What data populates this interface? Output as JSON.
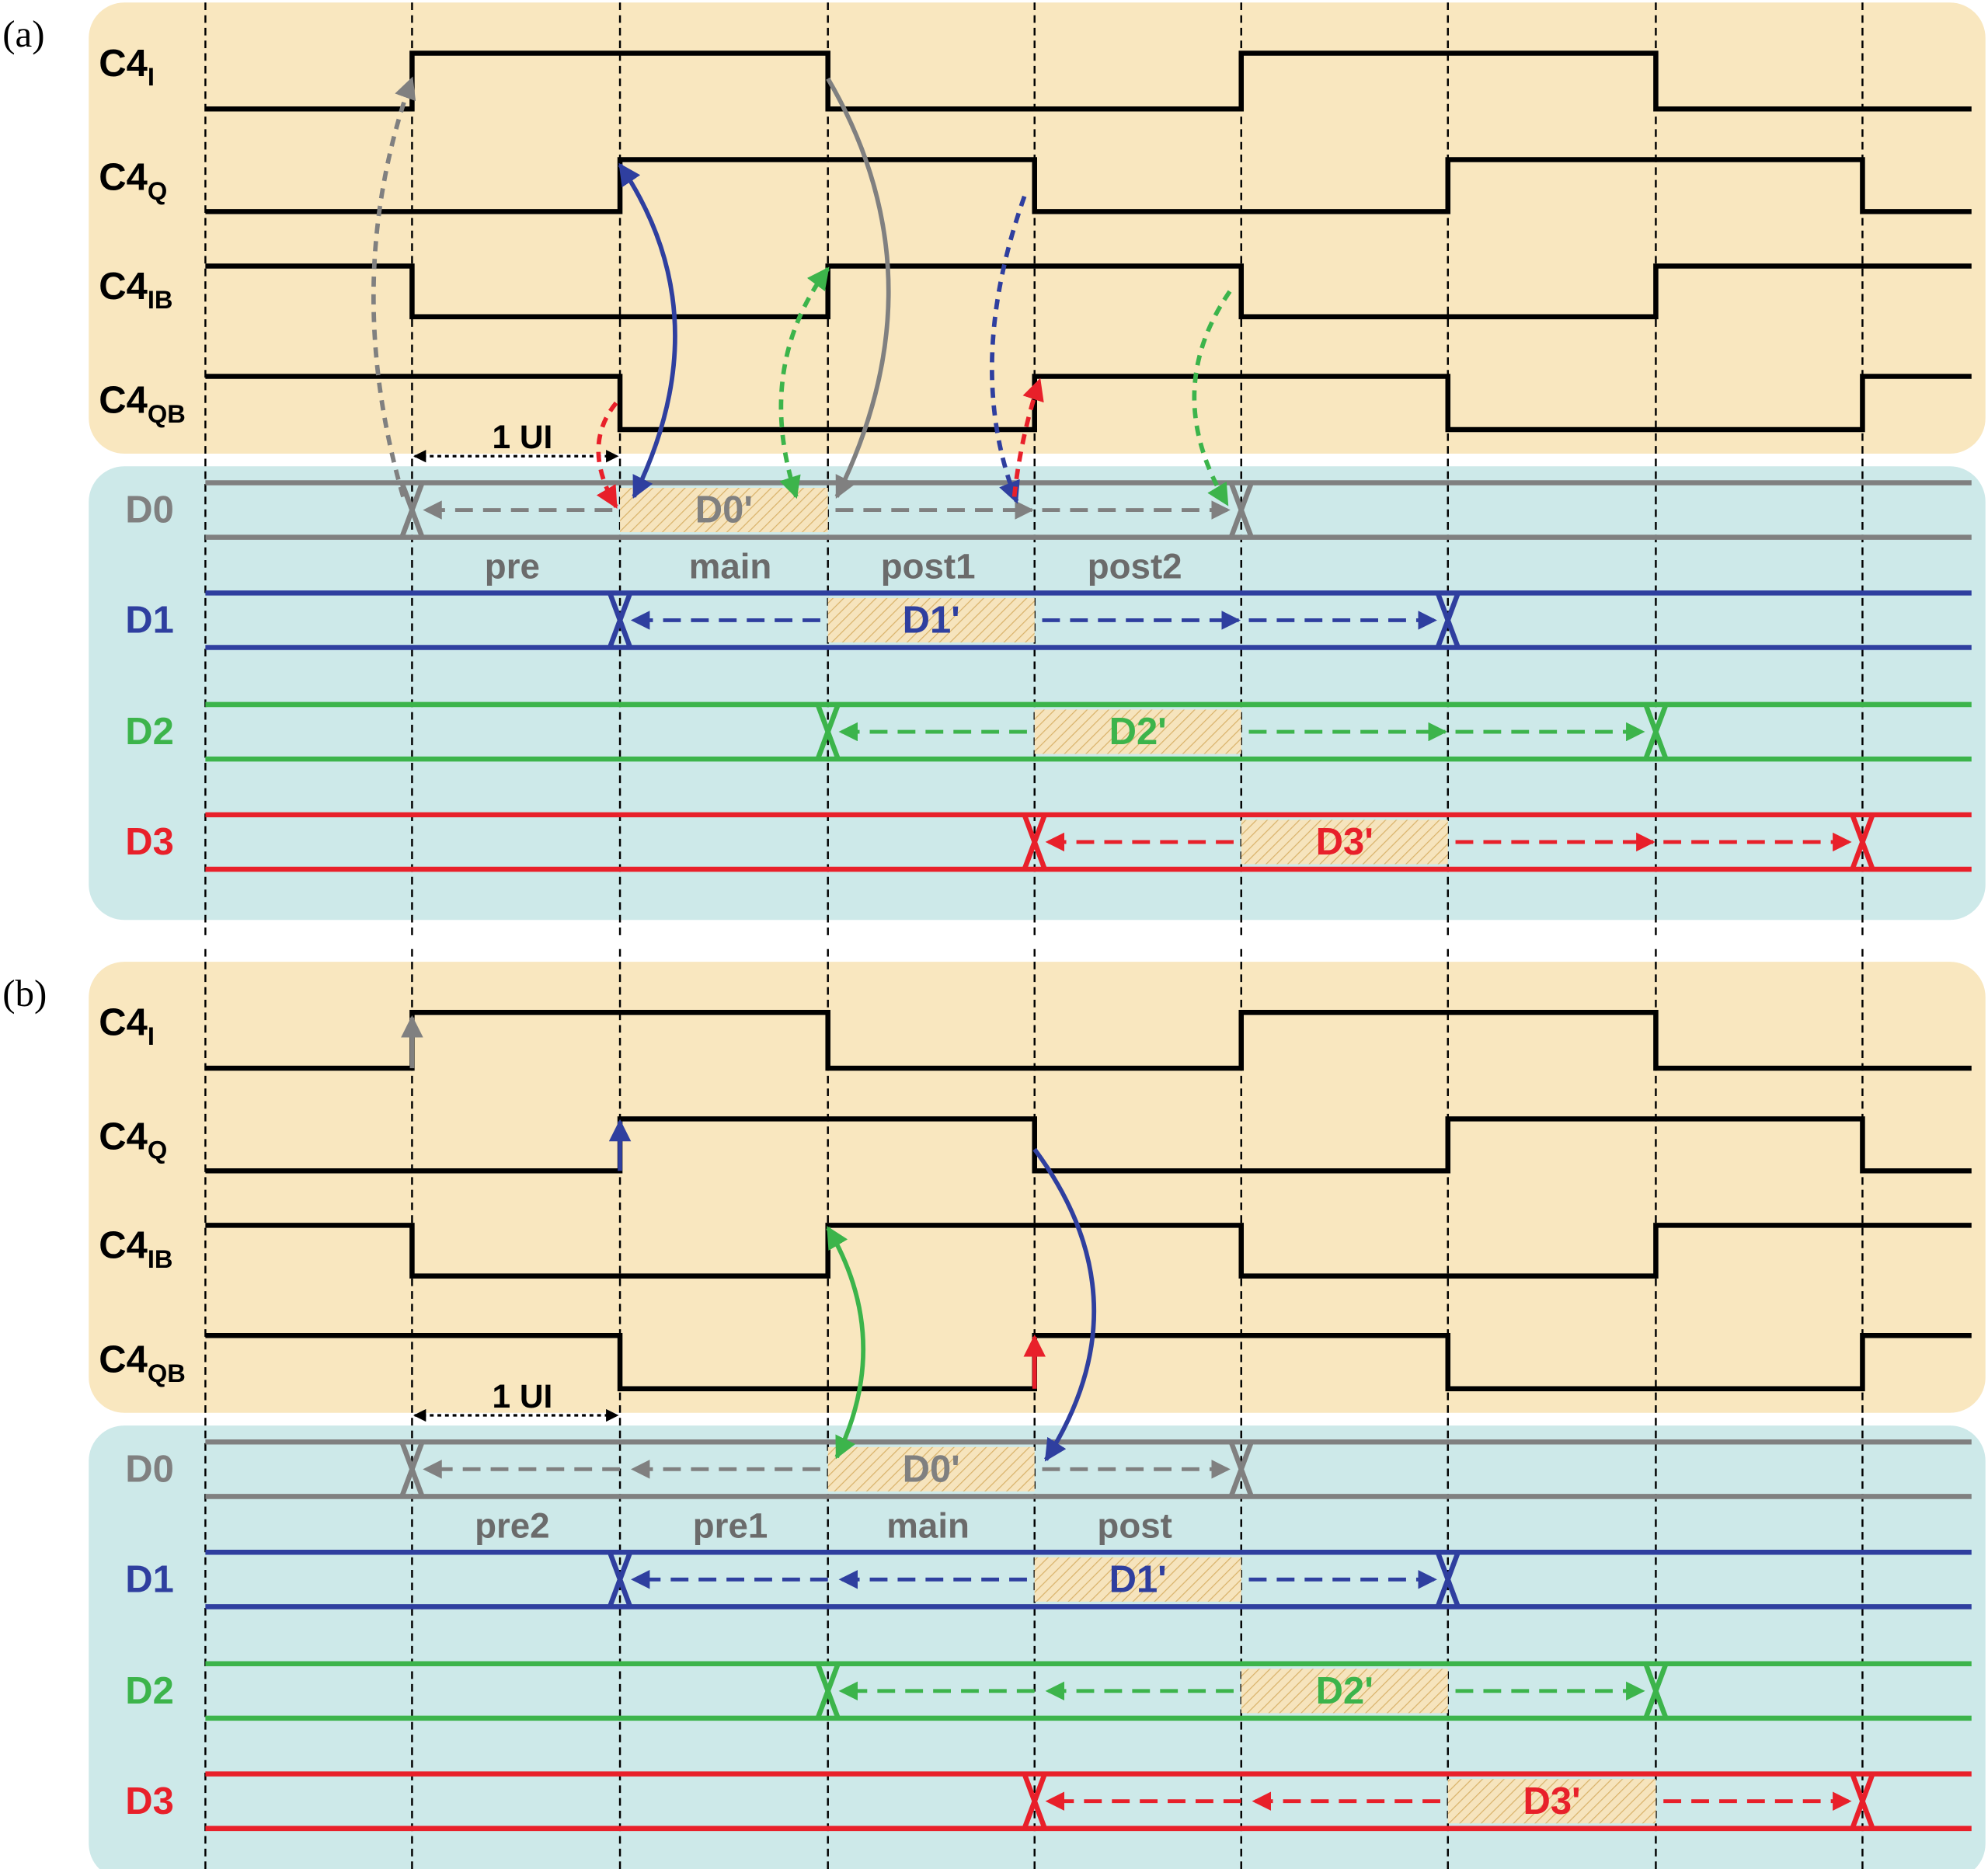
{
  "panels": [
    {
      "label": "(a)",
      "clocks": [
        {
          "base": "C4",
          "sub": "I"
        },
        {
          "base": "C4",
          "sub": "Q"
        },
        {
          "base": "C4",
          "sub": "IB"
        },
        {
          "base": "C4",
          "sub": "QB"
        }
      ],
      "ui_label": "1 UI",
      "data_lanes": [
        {
          "name": "D0",
          "box": "D0'"
        },
        {
          "name": "D1",
          "box": "D1'"
        },
        {
          "name": "D2",
          "box": "D2'"
        },
        {
          "name": "D3",
          "box": "D3'"
        }
      ],
      "taps": [
        "pre",
        "main",
        "post1",
        "post2"
      ]
    },
    {
      "label": "(b)",
      "clocks": [
        {
          "base": "C4",
          "sub": "I"
        },
        {
          "base": "C4",
          "sub": "Q"
        },
        {
          "base": "C4",
          "sub": "IB"
        },
        {
          "base": "C4",
          "sub": "QB"
        }
      ],
      "ui_label": "1 UI",
      "data_lanes": [
        {
          "name": "D0",
          "box": "D0'"
        },
        {
          "name": "D1",
          "box": "D1'"
        },
        {
          "name": "D2",
          "box": "D2'"
        },
        {
          "name": "D3",
          "box": "D3'"
        }
      ],
      "taps": [
        "pre2",
        "pre1",
        "main",
        "post"
      ]
    }
  ]
}
